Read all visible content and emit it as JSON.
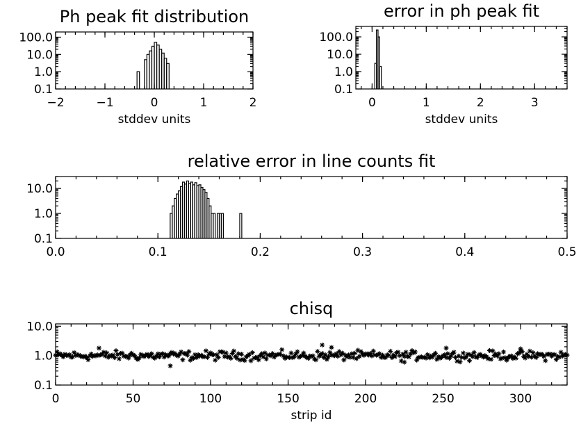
{
  "chart_data": [
    {
      "id": "ph_peak",
      "type": "histogram",
      "title": "Ph peak fit distribution",
      "xlabel": "stddev units",
      "ylabel": "",
      "xlim": [
        -2,
        2
      ],
      "ylim": [
        0.1,
        200
      ],
      "yscale": "log",
      "xticks": [
        -2,
        -1,
        0,
        1,
        2
      ],
      "yticks": [
        0.1,
        1.0,
        10.0,
        100.0
      ],
      "ytick_labels": [
        "0.1",
        "1.0",
        "10.0",
        "100.0"
      ],
      "bins": [
        [
          -0.35,
          1
        ],
        [
          -0.3,
          0
        ],
        [
          -0.25,
          0
        ],
        [
          -0.2,
          5
        ],
        [
          -0.15,
          10
        ],
        [
          -0.1,
          16
        ],
        [
          -0.05,
          30
        ],
        [
          0.0,
          50
        ],
        [
          0.05,
          35
        ],
        [
          0.1,
          20
        ],
        [
          0.15,
          12
        ],
        [
          0.2,
          6
        ],
        [
          0.25,
          3
        ]
      ],
      "bin_width": 0.05
    },
    {
      "id": "ph_error",
      "type": "histogram",
      "title": "error in ph peak fit",
      "xlabel": "stddev units",
      "ylabel": "",
      "xlim": [
        -0.3,
        3.6
      ],
      "ylim": [
        0.1,
        400
      ],
      "yscale": "log",
      "xticks": [
        0,
        1,
        2,
        3
      ],
      "yticks": [
        0.1,
        1.0,
        10.0,
        100.0
      ],
      "ytick_labels": [
        "0.1",
        "1.0",
        "10.0",
        "100.0"
      ],
      "bins": [
        [
          0.05,
          3
        ],
        [
          0.08,
          250
        ],
        [
          0.11,
          100
        ],
        [
          0.14,
          2
        ]
      ],
      "bin_width": 0.03
    },
    {
      "id": "rel_error",
      "type": "histogram",
      "title": "relative error in line counts fit",
      "xlabel": "",
      "ylabel": "",
      "xlim": [
        0.0,
        0.5
      ],
      "ylim": [
        0.1,
        30
      ],
      "yscale": "log",
      "xticks": [
        0.0,
        0.1,
        0.2,
        0.3,
        0.4,
        0.5
      ],
      "xtick_labels": [
        "0.0",
        "0.1",
        "0.2",
        "0.3",
        "0.4",
        "0.5"
      ],
      "yticks": [
        0.1,
        1.0,
        10.0
      ],
      "ytick_labels": [
        "0.1",
        "1.0",
        "10.0"
      ],
      "bins": [
        [
          0.112,
          1
        ],
        [
          0.114,
          2
        ],
        [
          0.116,
          4
        ],
        [
          0.118,
          6
        ],
        [
          0.12,
          8
        ],
        [
          0.122,
          12
        ],
        [
          0.124,
          18
        ],
        [
          0.126,
          15
        ],
        [
          0.128,
          20
        ],
        [
          0.13,
          16
        ],
        [
          0.132,
          18
        ],
        [
          0.134,
          14
        ],
        [
          0.136,
          17
        ],
        [
          0.138,
          13
        ],
        [
          0.14,
          14
        ],
        [
          0.142,
          11
        ],
        [
          0.144,
          9
        ],
        [
          0.146,
          7
        ],
        [
          0.148,
          4
        ],
        [
          0.15,
          2
        ],
        [
          0.152,
          1
        ],
        [
          0.154,
          1
        ],
        [
          0.158,
          1
        ],
        [
          0.16,
          1
        ],
        [
          0.162,
          1
        ],
        [
          0.18,
          1
        ]
      ],
      "bin_width": 0.002
    },
    {
      "id": "chisq",
      "type": "scatter",
      "title": "chisq",
      "xlabel": "strip id",
      "ylabel": "",
      "xlim": [
        0,
        330
      ],
      "ylim": [
        0.1,
        12
      ],
      "yscale": "log",
      "xticks": [
        0,
        50,
        100,
        150,
        200,
        250,
        300
      ],
      "yticks": [
        0.1,
        1.0,
        10.0
      ],
      "ytick_labels": [
        "0.1",
        "1.0",
        "10.0"
      ],
      "marker": "asterisk",
      "x_range": [
        0,
        330
      ],
      "typical_y": 1.0,
      "y_spread": [
        0.45,
        2.3
      ],
      "notable_points": [
        [
          74,
          0.45
        ],
        [
          28,
          1.8
        ],
        [
          172,
          2.3
        ],
        [
          178,
          1.9
        ],
        [
          225,
          0.6
        ],
        [
          252,
          1.8
        ],
        [
          300,
          1.7
        ]
      ]
    }
  ]
}
